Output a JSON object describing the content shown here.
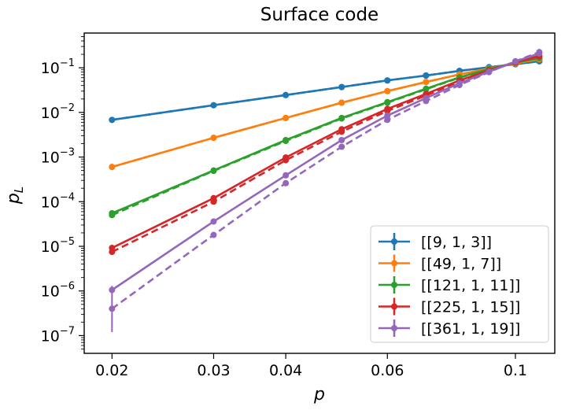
{
  "chart_data": {
    "type": "line",
    "title": "Surface code",
    "xlabel": "p",
    "ylabel": "p",
    "ylabel_sub": "L",
    "xscale": "log",
    "yscale": "log",
    "xlim": [
      0.0179,
      0.117
    ],
    "ylim": [
      4e-08,
      0.6
    ],
    "xticks": [
      {
        "value": 0.02,
        "label": "0.02"
      },
      {
        "value": 0.03,
        "label": "0.03"
      },
      {
        "value": 0.04,
        "label": "0.04"
      },
      {
        "value": 0.06,
        "label": "0.06"
      },
      {
        "value": 0.1,
        "label": "0.1"
      }
    ],
    "yticks": [
      {
        "value": 1e-07,
        "base": "10",
        "exp": "−7"
      },
      {
        "value": 1e-06,
        "base": "10",
        "exp": "−6"
      },
      {
        "value": 1e-05,
        "base": "10",
        "exp": "−5"
      },
      {
        "value": 0.0001,
        "base": "10",
        "exp": "−4"
      },
      {
        "value": 0.001,
        "base": "10",
        "exp": "−3"
      },
      {
        "value": 0.01,
        "base": "10",
        "exp": "−2"
      },
      {
        "value": 0.1,
        "base": "10",
        "exp": "−1"
      }
    ],
    "x": [
      0.02,
      0.03,
      0.04,
      0.05,
      0.06,
      0.07,
      0.08,
      0.09,
      0.1,
      0.11
    ],
    "legend_position": "lower-right",
    "series": [
      {
        "name": "[[9, 1, 3]]",
        "color": "#1f77b4",
        "solid": [
          0.0068,
          0.0145,
          0.0245,
          0.037,
          0.052,
          0.067,
          0.085,
          0.103,
          0.12,
          0.14
        ],
        "dashed": [
          0.0068,
          0.0145,
          0.0245,
          0.037,
          0.052,
          0.067,
          0.085,
          0.103,
          0.12,
          0.14
        ]
      },
      {
        "name": "[[49, 1, 7]]",
        "color": "#ff7f0e",
        "solid": [
          0.0006,
          0.0027,
          0.0075,
          0.0165,
          0.03,
          0.048,
          0.071,
          0.097,
          0.125,
          0.155
        ],
        "dashed": [
          0.0006,
          0.0027,
          0.0075,
          0.0165,
          0.03,
          0.048,
          0.071,
          0.097,
          0.125,
          0.155
        ]
      },
      {
        "name": "[[121, 1, 11]]",
        "color": "#2ca02c",
        "solid": [
          5.5e-05,
          0.0005,
          0.0024,
          0.0075,
          0.017,
          0.034,
          0.061,
          0.094,
          0.13,
          0.165
        ],
        "dashed": [
          5e-05,
          0.00049,
          0.0023,
          0.0073,
          0.0165,
          0.033,
          0.06,
          0.093,
          0.13,
          0.166
        ]
      },
      {
        "name": "[[225, 1, 15]]",
        "color": "#d62728",
        "solid": [
          9.2e-06,
          0.00012,
          0.00098,
          0.0042,
          0.012,
          0.026,
          0.052,
          0.088,
          0.133,
          0.18
        ],
        "dashed": [
          7.5e-06,
          0.0001,
          0.00085,
          0.0037,
          0.0108,
          0.024,
          0.049,
          0.085,
          0.133,
          0.185
        ]
      },
      {
        "name": "[[361, 1, 19]]",
        "color": "#9467bd",
        "solid": [
          1.05e-06,
          3.6e-05,
          0.00039,
          0.0024,
          0.0085,
          0.021,
          0.045,
          0.082,
          0.138,
          0.21
        ],
        "dashed": [
          4e-07,
          1.8e-05,
          0.00026,
          0.0017,
          0.0068,
          0.018,
          0.041,
          0.08,
          0.14,
          0.225
        ]
      }
    ],
    "errorbars": [
      {
        "series": 4,
        "x": 0.02,
        "low": 1.2e-07,
        "high": 1.3e-06
      }
    ]
  }
}
